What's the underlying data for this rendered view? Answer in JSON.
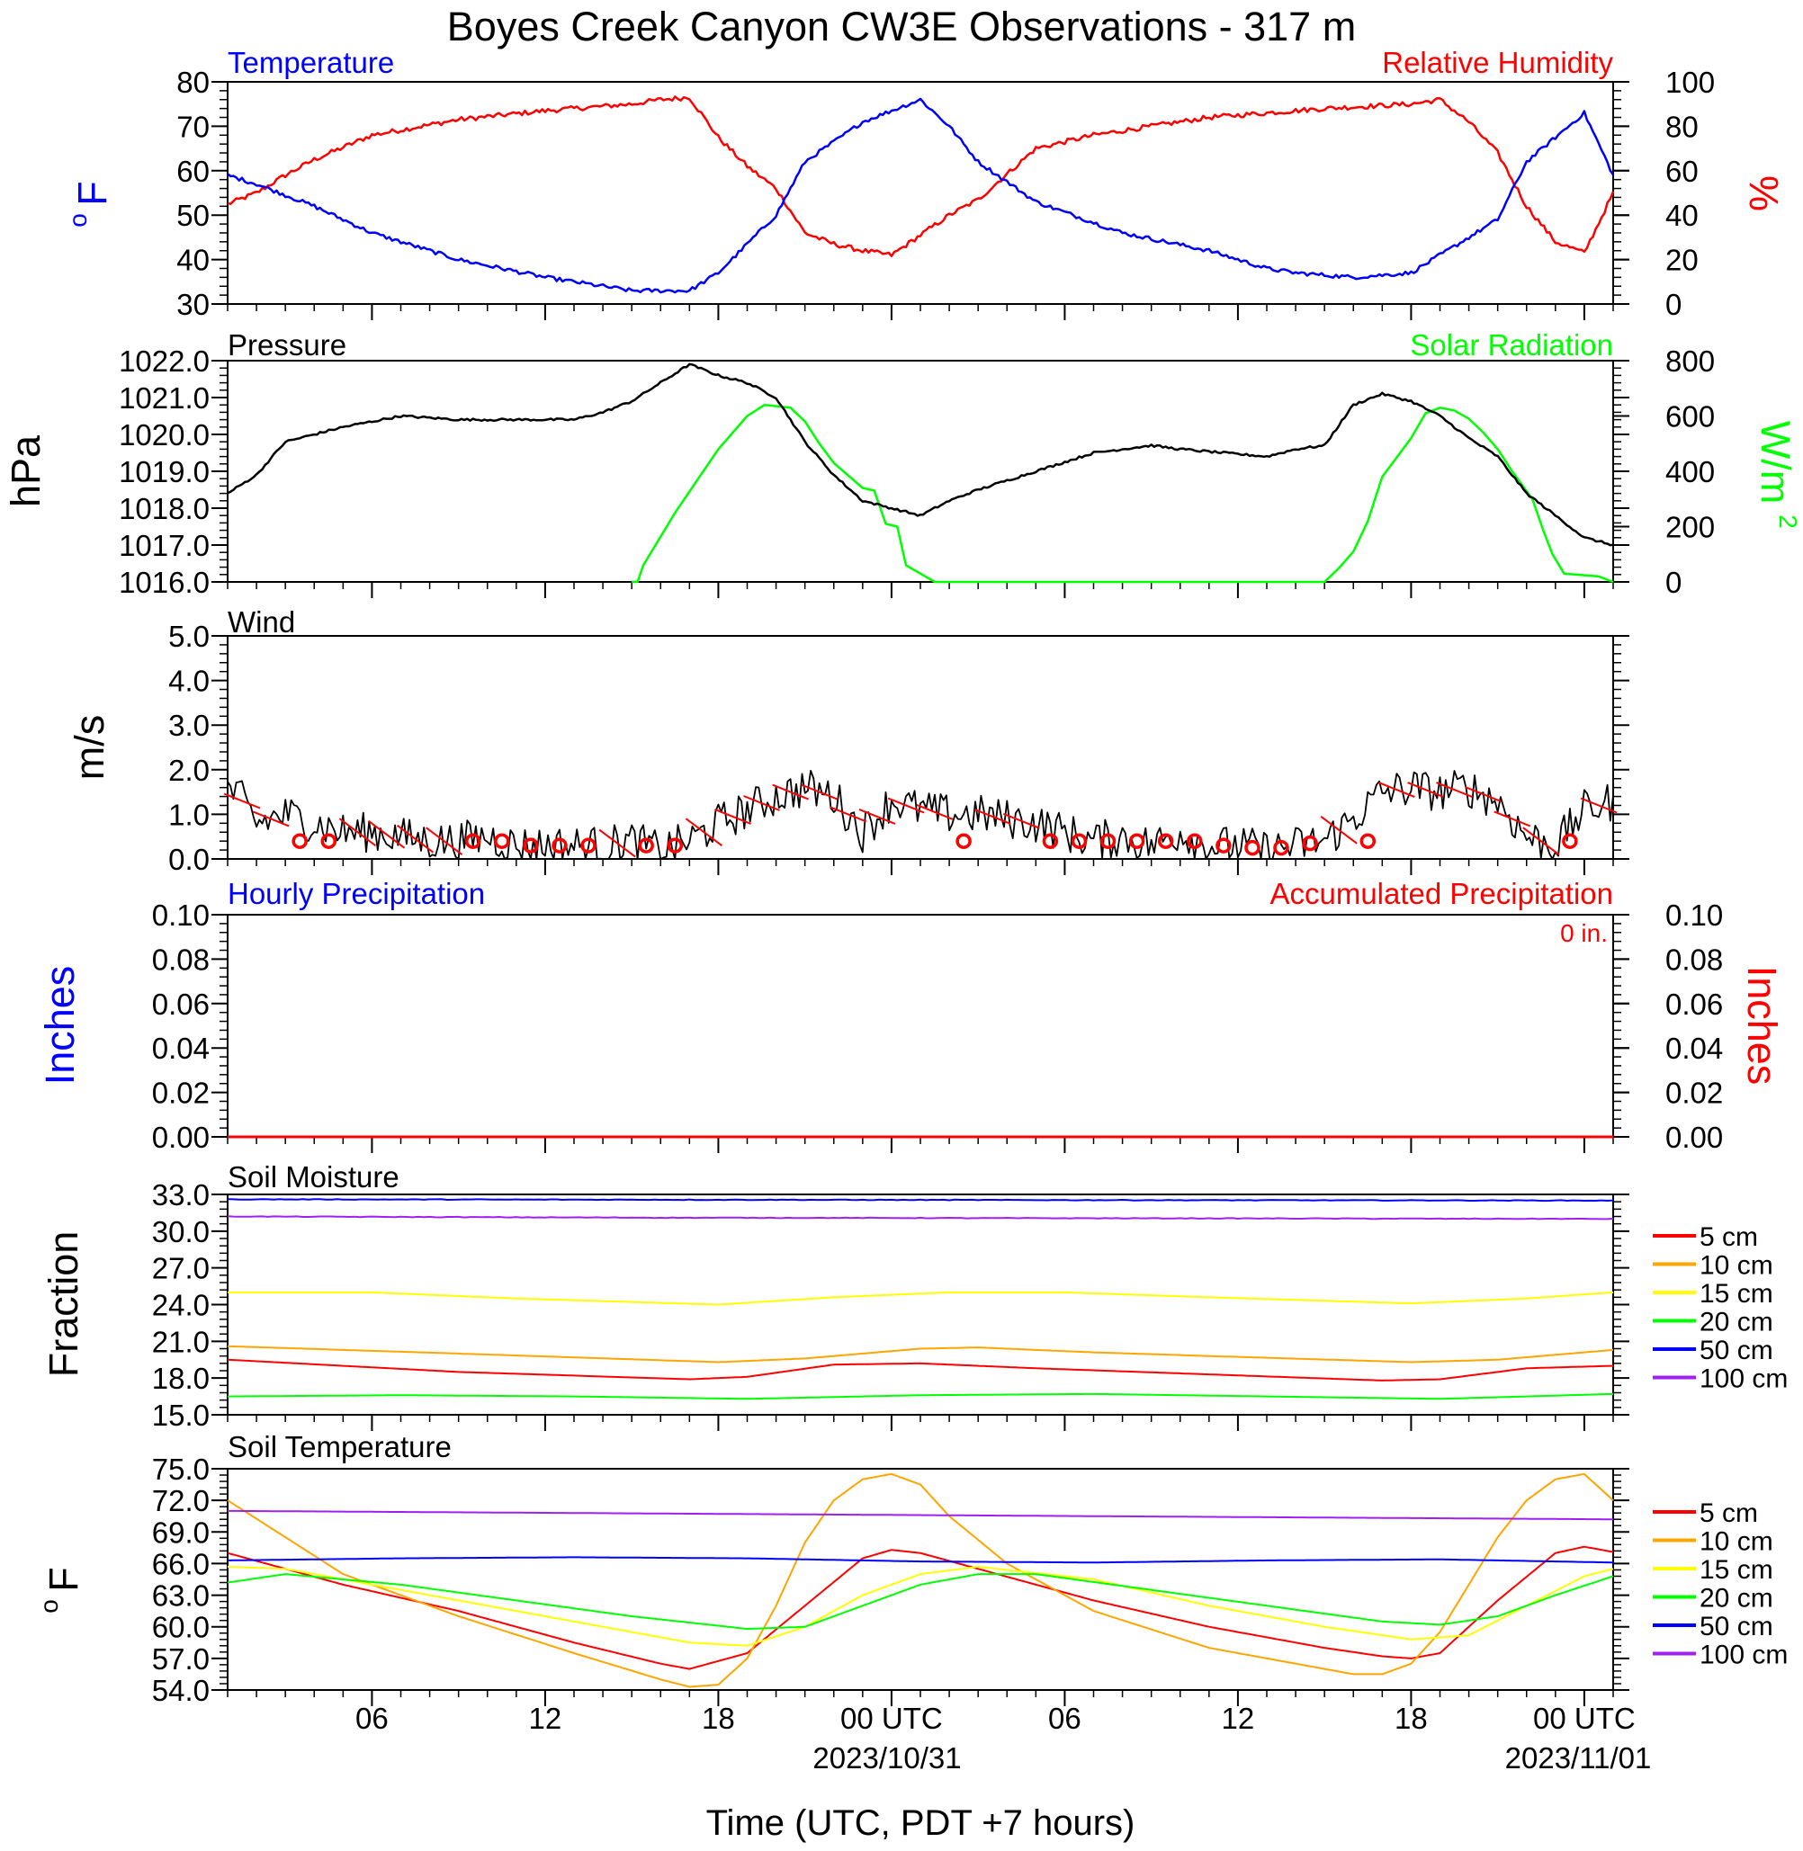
{
  "title": "Boyes Creek Canyon CW3E Observations - 317 m",
  "x_axis": {
    "title": "Time (UTC, PDT +7 hours)",
    "tick_labels": [
      "06",
      "12",
      "18",
      "00 UTC",
      "06",
      "12",
      "18",
      "00 UTC"
    ],
    "date_labels": [
      "2023/10/31",
      "2023/11/01"
    ]
  },
  "panels": {
    "temp_rh": {
      "left_title": "Temperature",
      "right_title": "Relative Humidity",
      "left_ylabel": "F",
      "left_ylabel_superscript": "o",
      "right_ylabel": "%",
      "left_ticks": [
        "80",
        "70",
        "60",
        "50",
        "40",
        "30"
      ],
      "right_ticks": [
        "100",
        "80",
        "60",
        "40",
        "20",
        "0"
      ]
    },
    "pressure_solar": {
      "left_title": "Pressure",
      "right_title": "Solar Radiation",
      "left_ylabel": "hPa",
      "right_ylabel": "W/m",
      "right_ylabel_superscript": "2",
      "left_ticks": [
        "1022.0",
        "1021.0",
        "1020.0",
        "1019.0",
        "1018.0",
        "1017.0",
        "1016.0"
      ],
      "right_ticks": [
        "800",
        "600",
        "400",
        "200",
        "0"
      ]
    },
    "wind": {
      "left_title": "Wind",
      "left_ylabel": "m/s",
      "left_ticks": [
        "5.0",
        "4.0",
        "3.0",
        "2.0",
        "1.0",
        "0.0"
      ]
    },
    "precip": {
      "left_title": "Hourly Precipitation",
      "right_title": "Accumulated Precipitation",
      "accum_label": "0 in.",
      "left_ylabel": "Inches",
      "right_ylabel": "Inches",
      "left_ticks": [
        "0.10",
        "0.08",
        "0.06",
        "0.04",
        "0.02",
        "0.00"
      ],
      "right_ticks": [
        "0.10",
        "0.08",
        "0.06",
        "0.04",
        "0.02",
        "0.00"
      ]
    },
    "soil_moisture": {
      "left_title": "Soil Moisture",
      "left_ylabel": "Fraction",
      "left_ticks": [
        "33.0",
        "30.0",
        "27.0",
        "24.0",
        "21.0",
        "18.0",
        "15.0"
      ],
      "legend": [
        "5 cm",
        "10 cm",
        "15 cm",
        "20 cm",
        "50 cm",
        "100 cm"
      ]
    },
    "soil_temp": {
      "left_title": "Soil Temperature",
      "left_ylabel": "F",
      "left_ylabel_superscript": "o",
      "left_ticks": [
        "75.0",
        "72.0",
        "69.0",
        "66.0",
        "63.0",
        "60.0",
        "57.0",
        "54.0"
      ],
      "legend": [
        "5 cm",
        "10 cm",
        "15 cm",
        "20 cm",
        "50 cm",
        "100 cm"
      ]
    }
  },
  "colors": {
    "temperature": "#0000ff",
    "humidity": "#ff0000",
    "pressure": "#000000",
    "solar": "#00ff00",
    "wind": "#000000",
    "wind_barb": "#ff0000",
    "depth_5cm": "#ff0000",
    "depth_10cm": "#ffa500",
    "depth_15cm": "#ffff00",
    "depth_20cm": "#00ff00",
    "depth_50cm": "#0000ff",
    "depth_100cm": "#a020f0"
  },
  "chart_data": [
    {
      "type": "line",
      "title": "Temperature / Relative Humidity",
      "x_unit": "hours since 2023-10-30 01:00 UTC",
      "xlim": [
        0,
        48
      ],
      "ylim": [
        30,
        80
      ],
      "y2lim": [
        0,
        100
      ],
      "series": [
        {
          "name": "Temperature",
          "axis": "left",
          "unit": "F",
          "x": [
            0,
            1,
            3,
            5,
            8,
            11,
            14,
            16,
            17,
            19,
            20,
            22,
            24,
            25,
            26,
            28,
            31,
            34,
            36,
            37,
            39,
            41,
            44,
            45,
            47,
            48
          ],
          "y": [
            59,
            57,
            52,
            46,
            40,
            36,
            33,
            33,
            37,
            50,
            62,
            71,
            76,
            70,
            62,
            53,
            46,
            42,
            38,
            37,
            36,
            37,
            49,
            62,
            73,
            59
          ]
        },
        {
          "name": "Relative Humidity",
          "axis": "right",
          "unit": "%",
          "x": [
            0,
            1,
            2,
            3,
            5,
            8,
            11,
            14,
            15,
            16,
            17,
            18,
            19,
            20,
            21,
            22,
            23,
            25,
            26,
            28,
            30,
            34,
            38,
            41,
            42,
            43,
            44,
            45,
            46,
            47,
            48
          ],
          "y": [
            45,
            50,
            58,
            65,
            76,
            83,
            87,
            90,
            92,
            93,
            75,
            62,
            52,
            32,
            27,
            24,
            22,
            40,
            47,
            70,
            76,
            84,
            88,
            90,
            92,
            82,
            68,
            44,
            28,
            23,
            50
          ]
        }
      ]
    },
    {
      "type": "line",
      "title": "Pressure / Solar Radiation",
      "x_unit": "hours since 2023-10-30 01:00 UTC",
      "xlim": [
        0,
        48
      ],
      "ylim": [
        1016.0,
        1022.0
      ],
      "y2lim": [
        0,
        800
      ],
      "series": [
        {
          "name": "Pressure",
          "axis": "left",
          "unit": "hPa",
          "x": [
            0,
            1,
            2,
            4,
            6,
            8,
            10,
            12,
            13,
            14,
            15,
            16,
            17,
            18,
            19,
            20,
            21,
            22,
            23,
            24,
            25,
            26,
            28,
            30,
            31,
            32,
            33,
            36,
            37,
            38,
            39,
            40,
            41,
            42,
            43,
            44,
            45,
            46,
            47,
            48
          ],
          "y": [
            1018.4,
            1018.9,
            1019.8,
            1020.2,
            1020.5,
            1020.4,
            1020.4,
            1020.4,
            1020.6,
            1020.9,
            1021.4,
            1021.9,
            1021.6,
            1021.4,
            1021.0,
            1019.8,
            1018.9,
            1018.2,
            1018.0,
            1017.8,
            1018.2,
            1018.5,
            1019.0,
            1019.5,
            1019.6,
            1019.7,
            1019.6,
            1019.4,
            1019.6,
            1019.7,
            1020.8,
            1021.1,
            1020.9,
            1020.5,
            1019.9,
            1019.4,
            1018.4,
            1017.8,
            1017.2,
            1017.0
          ]
        },
        {
          "name": "Solar Radiation",
          "axis": "right",
          "unit": "W/m2",
          "x": [
            14,
            14.2,
            14.4,
            15.5,
            17,
            18,
            18.6,
            19.5,
            20,
            20.5,
            21,
            22,
            22.4,
            22.8,
            23.2,
            23.5,
            24.5,
            38,
            38.5,
            39,
            39.5,
            40,
            40.5,
            41,
            41.5,
            42,
            42.5,
            43,
            43.5,
            44,
            44.5,
            45.2,
            45.6,
            45.9,
            46.3,
            47.5,
            48
          ],
          "y": [
            0,
            0,
            60,
            250,
            480,
            600,
            640,
            630,
            580,
            500,
            430,
            340,
            330,
            210,
            200,
            60,
            0,
            0,
            50,
            110,
            220,
            380,
            450,
            520,
            610,
            630,
            620,
            590,
            540,
            480,
            400,
            300,
            180,
            100,
            30,
            20,
            0
          ]
        }
      ]
    },
    {
      "type": "line",
      "title": "Wind",
      "x_unit": "hours since 2023-10-30 01:00 UTC",
      "xlim": [
        0,
        48
      ],
      "ylim": [
        0,
        5
      ],
      "series": [
        {
          "name": "Wind",
          "unit": "m/s",
          "x": [
            0,
            0.5,
            1,
            2,
            3,
            4,
            5,
            6,
            7,
            8,
            9,
            10,
            11,
            12,
            13,
            14,
            15,
            16,
            17,
            18,
            19,
            20,
            21,
            22,
            23,
            24,
            25,
            26,
            27,
            28,
            29,
            30,
            31,
            32,
            33,
            34,
            35,
            36,
            37,
            38,
            39,
            40,
            41,
            42,
            43,
            44,
            45,
            46,
            47,
            48
          ],
          "y": [
            1.6,
            1.3,
            0.8,
            1.0,
            0.8,
            0.6,
            0.6,
            0.5,
            0.4,
            0.4,
            0.5,
            0.3,
            0.3,
            0.3,
            0.3,
            0.4,
            0.2,
            0.4,
            0.8,
            1.1,
            1.4,
            1.6,
            1.4,
            0.6,
            1.3,
            1.1,
            1.0,
            1.0,
            0.9,
            0.8,
            0.6,
            0.4,
            0.5,
            0.3,
            0.6,
            0.3,
            0.3,
            0.2,
            0.3,
            0.4,
            0.9,
            1.5,
            1.6,
            1.5,
            1.6,
            1.3,
            0.5,
            0.3,
            1.1,
            1.3
          ]
        }
      ],
      "calm_markers_x": [
        2,
        3,
        8,
        9,
        10,
        11,
        12,
        14,
        15,
        25,
        28,
        29,
        30,
        31,
        32,
        33,
        34,
        35,
        36,
        37,
        39,
        46
      ]
    },
    {
      "type": "line",
      "title": "Precipitation",
      "x_unit": "hours since 2023-10-30 01:00 UTC",
      "xlim": [
        0,
        48
      ],
      "ylim": [
        0,
        0.1
      ],
      "y2lim": [
        0,
        0.1
      ],
      "series": [
        {
          "name": "Hourly Precipitation",
          "axis": "left",
          "unit": "in",
          "x": [
            0,
            48
          ],
          "y": [
            0,
            0
          ]
        },
        {
          "name": "Accumulated Precipitation",
          "axis": "right",
          "unit": "in",
          "x": [
            0,
            48
          ],
          "y": [
            0,
            0
          ]
        }
      ]
    },
    {
      "type": "line",
      "title": "Soil Moisture",
      "x_unit": "hours since 2023-10-30 01:00 UTC",
      "xlim": [
        0,
        48
      ],
      "ylim": [
        15,
        33
      ],
      "series": [
        {
          "name": "5 cm",
          "x": [
            0,
            8,
            16,
            18,
            21,
            24,
            28,
            34,
            40,
            42,
            45,
            48
          ],
          "y": [
            19.5,
            18.5,
            17.9,
            18.1,
            19.1,
            19.2,
            18.8,
            18.3,
            17.8,
            17.9,
            18.8,
            19.0
          ]
        },
        {
          "name": "10 cm",
          "x": [
            0,
            8,
            17,
            20,
            24,
            26,
            30,
            34,
            41,
            44,
            48
          ],
          "y": [
            20.6,
            20.0,
            19.3,
            19.6,
            20.4,
            20.5,
            20.1,
            19.8,
            19.3,
            19.5,
            20.3
          ]
        },
        {
          "name": "15 cm",
          "x": [
            0,
            5,
            10,
            17,
            21,
            25,
            29,
            34,
            41,
            45,
            48
          ],
          "y": [
            25.0,
            25.0,
            24.5,
            24.0,
            24.6,
            25.0,
            25.0,
            24.6,
            24.1,
            24.5,
            25.0
          ]
        },
        {
          "name": "20 cm",
          "x": [
            0,
            6,
            12,
            18,
            24,
            30,
            36,
            42,
            48
          ],
          "y": [
            16.5,
            16.6,
            16.5,
            16.3,
            16.6,
            16.7,
            16.5,
            16.3,
            16.7
          ]
        },
        {
          "name": "50 cm",
          "x": [
            0,
            48
          ],
          "y": [
            32.6,
            32.5
          ]
        },
        {
          "name": "100 cm",
          "x": [
            0,
            15,
            48
          ],
          "y": [
            31.2,
            31.1,
            31.0
          ]
        }
      ]
    },
    {
      "type": "line",
      "title": "Soil Temperature",
      "x_unit": "hours since 2023-10-30 01:00 UTC",
      "xlim": [
        0,
        48
      ],
      "ylim": [
        54,
        75
      ],
      "series": [
        {
          "name": "5 cm",
          "x": [
            0,
            4,
            8,
            12,
            15,
            16,
            18,
            20,
            22,
            23,
            24,
            26,
            30,
            34,
            38,
            40,
            41,
            42,
            44,
            46,
            47,
            48
          ],
          "y": [
            67,
            64,
            61.5,
            58.5,
            56.5,
            56.0,
            57.5,
            62.0,
            66.5,
            67.3,
            67.0,
            65.5,
            62.5,
            60.0,
            58.0,
            57.2,
            57.0,
            57.5,
            62.5,
            67.0,
            67.6,
            67.1
          ]
        },
        {
          "name": "10 cm",
          "x": [
            0,
            4,
            8,
            12,
            15,
            16,
            17,
            18,
            19,
            20,
            21,
            22,
            23,
            24,
            25,
            27,
            30,
            34,
            38,
            39,
            40,
            41,
            42,
            43,
            44,
            45,
            46,
            47,
            48
          ],
          "y": [
            72,
            65,
            61,
            57.5,
            55.0,
            54.3,
            54.5,
            57.0,
            62.0,
            68.0,
            72.0,
            74.0,
            74.5,
            73.5,
            70.5,
            66.0,
            61.5,
            58.0,
            56.0,
            55.5,
            55.5,
            56.5,
            59.5,
            64.0,
            68.5,
            72.0,
            74.0,
            74.5,
            72.0
          ]
        },
        {
          "name": "15 cm",
          "x": [
            0,
            2,
            6,
            10,
            14,
            16,
            18,
            20,
            22,
            24,
            26,
            30,
            34,
            38,
            41,
            43,
            45,
            47,
            48
          ],
          "y": [
            65.7,
            65.5,
            63.5,
            61.5,
            59.5,
            58.5,
            58.2,
            60.0,
            63.0,
            65.0,
            65.7,
            64.5,
            62.0,
            60.0,
            58.8,
            59.2,
            62.0,
            64.8,
            65.5
          ]
        },
        {
          "name": "20 cm",
          "x": [
            0,
            2,
            6,
            10,
            14,
            18,
            20,
            22,
            24,
            26,
            28,
            32,
            36,
            40,
            42,
            44,
            46,
            48
          ],
          "y": [
            64.2,
            65.0,
            64.0,
            62.5,
            61.0,
            59.8,
            60.0,
            62.0,
            64.0,
            65.0,
            65.0,
            63.5,
            62.0,
            60.5,
            60.2,
            61.0,
            63.0,
            64.8
          ]
        },
        {
          "name": "50 cm",
          "x": [
            0,
            6,
            12,
            18,
            24,
            30,
            36,
            42,
            48
          ],
          "y": [
            66.3,
            66.5,
            66.6,
            66.5,
            66.2,
            66.1,
            66.3,
            66.4,
            66.1
          ]
        },
        {
          "name": "100 cm",
          "x": [
            0,
            12,
            24,
            36,
            48
          ],
          "y": [
            71.0,
            70.8,
            70.6,
            70.4,
            70.2
          ]
        }
      ]
    }
  ]
}
